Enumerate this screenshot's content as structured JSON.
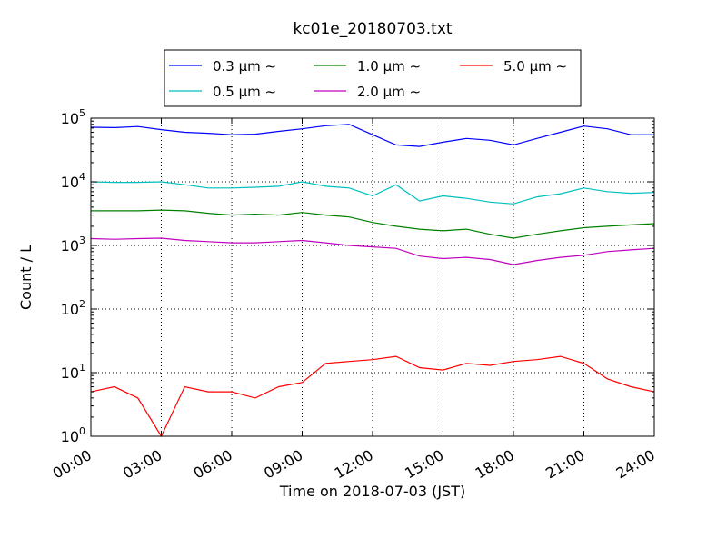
{
  "chart_data": {
    "type": "line",
    "title": "kc01e_20180703.txt",
    "xlabel": "Time on 2018-07-03 (JST)",
    "ylabel": "Count / L",
    "yscale": "log",
    "ylim": [
      1,
      100000
    ],
    "xlim": [
      "00:00",
      "24:00"
    ],
    "x_ticks": [
      "00:00",
      "03:00",
      "06:00",
      "09:00",
      "12:00",
      "15:00",
      "18:00",
      "21:00",
      "24:00"
    ],
    "y_ticks": [
      {
        "base": "10",
        "exp": "0",
        "value": 1
      },
      {
        "base": "10",
        "exp": "1",
        "value": 10
      },
      {
        "base": "10",
        "exp": "2",
        "value": 100
      },
      {
        "base": "10",
        "exp": "3",
        "value": 1000
      },
      {
        "base": "10",
        "exp": "4",
        "value": 10000
      },
      {
        "base": "10",
        "exp": "5",
        "value": 100000
      }
    ],
    "grid": true,
    "legend_position": "top",
    "x_times": [
      "00:00",
      "01:00",
      "02:00",
      "03:00",
      "04:00",
      "05:00",
      "06:00",
      "07:00",
      "08:00",
      "09:00",
      "10:00",
      "11:00",
      "12:00",
      "13:00",
      "14:00",
      "15:00",
      "16:00",
      "17:00",
      "18:00",
      "19:00",
      "20:00",
      "21:00",
      "22:00",
      "23:00",
      "24:00"
    ],
    "series": [
      {
        "name": "0.3 μm ∼",
        "color": "#0000ff",
        "values": [
          72000,
          71000,
          74000,
          66000,
          60000,
          58000,
          55000,
          56000,
          62000,
          68000,
          76000,
          80000,
          55000,
          38000,
          36000,
          42000,
          48000,
          45000,
          38000,
          48000,
          60000,
          75000,
          68000,
          55000,
          55000
        ]
      },
      {
        "name": "0.5 μm ∼",
        "color": "#00bfbf",
        "values": [
          10000,
          9800,
          9800,
          10000,
          9000,
          8000,
          8000,
          8200,
          8500,
          10000,
          8500,
          8000,
          6000,
          9000,
          5000,
          6000,
          5500,
          4800,
          4500,
          5800,
          6500,
          8000,
          7000,
          6600,
          6800
        ]
      },
      {
        "name": "1.0 μm ∼",
        "color": "#008000",
        "values": [
          3500,
          3500,
          3500,
          3600,
          3500,
          3200,
          3000,
          3100,
          3000,
          3300,
          3000,
          2800,
          2300,
          2000,
          1800,
          1700,
          1800,
          1500,
          1300,
          1500,
          1700,
          1900,
          2000,
          2100,
          2200
        ]
      },
      {
        "name": "2.0 μm ∼",
        "color": "#bf00bf",
        "values": [
          1280,
          1250,
          1280,
          1300,
          1200,
          1150,
          1100,
          1100,
          1150,
          1200,
          1100,
          1000,
          950,
          900,
          680,
          620,
          650,
          600,
          500,
          580,
          650,
          700,
          800,
          850,
          900
        ]
      },
      {
        "name": "5.0 μm ∼",
        "color": "#ff0000",
        "values": [
          5,
          6,
          4,
          1,
          6,
          5,
          5,
          4,
          6,
          7,
          14,
          15,
          16,
          18,
          12,
          11,
          14,
          13,
          15,
          16,
          18,
          14,
          8,
          6,
          5
        ]
      }
    ]
  }
}
